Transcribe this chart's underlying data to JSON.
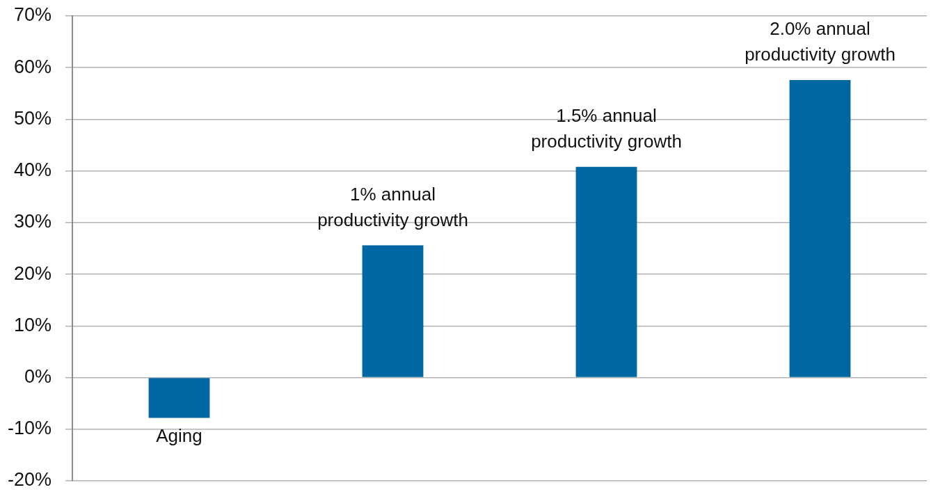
{
  "chart_data": {
    "type": "bar",
    "categories": [
      "Aging",
      "1% annual productivity growth",
      "1.5% annual productivity growth",
      "2.0% annual productivity growth"
    ],
    "values": [
      -7.8,
      25.6,
      40.8,
      57.6
    ],
    "color": "#0067a3",
    "ylim": [
      -20,
      70
    ],
    "yticks": [
      {
        "value": -20,
        "label": "-20%"
      },
      {
        "value": -10,
        "label": "-10%"
      },
      {
        "value": 0,
        "label": "0%"
      },
      {
        "value": 10,
        "label": "10%"
      },
      {
        "value": 20,
        "label": "20%"
      },
      {
        "value": 30,
        "label": "30%"
      },
      {
        "value": 40,
        "label": "40%"
      },
      {
        "value": 50,
        "label": "50%"
      },
      {
        "value": 60,
        "label": "60%"
      },
      {
        "value": 70,
        "label": "70%"
      }
    ],
    "grid": "y"
  }
}
